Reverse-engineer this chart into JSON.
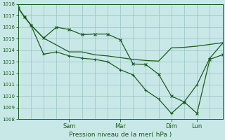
{
  "bg_color": "#c8e8e8",
  "grid_color": "#a0c8c8",
  "line_color": "#1a5c1a",
  "xlabel": "Pression niveau de la mer( hPa )",
  "ylim": [
    1008,
    1018
  ],
  "yticks": [
    1008,
    1009,
    1010,
    1011,
    1012,
    1013,
    1014,
    1015,
    1016,
    1017,
    1018
  ],
  "total_hours": 96,
  "day_tick_hours": [
    24,
    48,
    72,
    84
  ],
  "day_labels": [
    "Sam",
    "Mar",
    "Dim",
    "Lun"
  ],
  "series1_x": [
    0,
    3,
    6,
    12,
    24,
    30,
    36,
    42,
    48,
    54,
    60,
    66,
    72,
    78,
    84,
    90,
    96
  ],
  "series1_y": [
    1017.7,
    1016.9,
    1016.2,
    1015.05,
    1013.85,
    1013.85,
    1013.6,
    1013.5,
    1013.35,
    1013.2,
    1013.1,
    1013.05,
    1014.2,
    1014.25,
    1014.35,
    1014.5,
    1014.65
  ],
  "series2_x": [
    0,
    3,
    6,
    12,
    18,
    24,
    30,
    36,
    42,
    48,
    54,
    60,
    66,
    72,
    78,
    84,
    90,
    96
  ],
  "series2_y": [
    1017.7,
    1016.9,
    1016.2,
    1015.05,
    1016.0,
    1015.8,
    1015.35,
    1015.4,
    1015.4,
    1014.9,
    1012.8,
    1012.75,
    1011.9,
    1010.0,
    1009.5,
    1008.5,
    1013.2,
    1013.6
  ],
  "series3_x": [
    0,
    3,
    6,
    12,
    18,
    24,
    30,
    36,
    42,
    48,
    54,
    60,
    66,
    72,
    78,
    84,
    90,
    96
  ],
  "series3_y": [
    1017.7,
    1016.9,
    1016.2,
    1013.65,
    1013.85,
    1013.5,
    1013.3,
    1013.2,
    1013.0,
    1012.3,
    1011.85,
    1010.5,
    1009.75,
    1008.5,
    1009.5,
    1011.0,
    1013.3,
    1014.6
  ],
  "marker2": "x",
  "marker3": "+"
}
